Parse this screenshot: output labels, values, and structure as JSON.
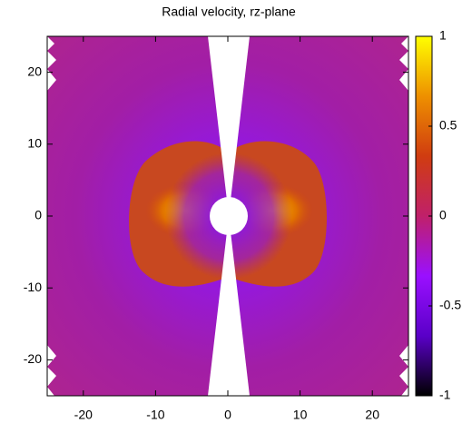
{
  "chart_data": {
    "type": "heatmap",
    "title": "Radial velocity, rz-plane",
    "xlim": [
      -25,
      25
    ],
    "xticks": [
      -20,
      -10,
      0,
      10,
      20
    ],
    "ylim": [
      -25,
      25
    ],
    "yticks": [
      -20,
      -10,
      0,
      10,
      20
    ],
    "clim": [
      -1,
      1
    ],
    "cticks": [
      -1,
      -0.5,
      0,
      0.5,
      1
    ],
    "colormap": [
      "#000000",
      "#5a00c8",
      "#9a10ff",
      "#c0206a",
      "#d03c10",
      "#ee9000",
      "#ffff00"
    ]
  }
}
